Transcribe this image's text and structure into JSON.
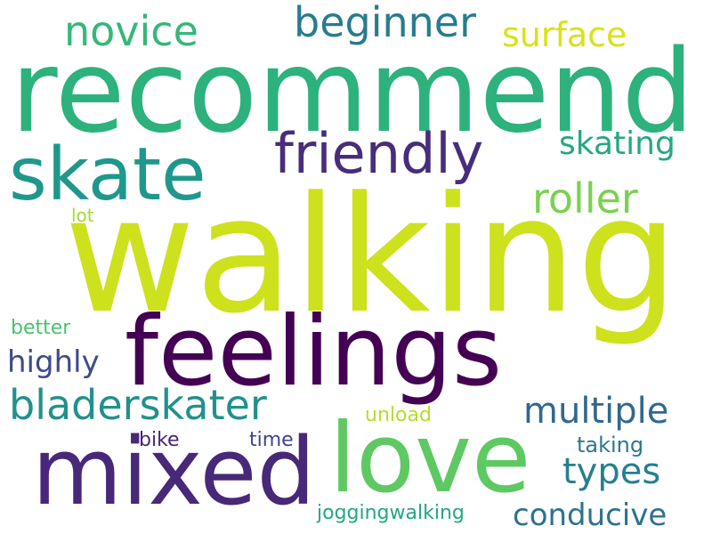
{
  "words": [
    {
      "text": "walking",
      "color": "#cde11d"
    },
    {
      "text": "recommend",
      "color": "#2db27d"
    },
    {
      "text": "feelings",
      "color": "#440154"
    },
    {
      "text": "mixed",
      "color": "#482878"
    },
    {
      "text": "love",
      "color": "#5ec962"
    },
    {
      "text": "skate",
      "color": "#1f988b"
    },
    {
      "text": "friendly",
      "color": "#472d7b"
    },
    {
      "text": "beginner",
      "color": "#287c8e"
    },
    {
      "text": "novice",
      "color": "#35b779"
    },
    {
      "text": "surface",
      "color": "#d8e219"
    },
    {
      "text": "roller",
      "color": "#7ad151"
    },
    {
      "text": "skating",
      "color": "#23a884"
    },
    {
      "text": "bladerskater",
      "color": "#21918c"
    },
    {
      "text": "multiple",
      "color": "#31688e"
    },
    {
      "text": "highly",
      "color": "#3e4a89"
    },
    {
      "text": "types",
      "color": "#277f8e"
    },
    {
      "text": "conducive",
      "color": "#2c728e"
    },
    {
      "text": "joggingwalking",
      "color": "#22a785"
    },
    {
      "text": "taking",
      "color": "#2a788e"
    },
    {
      "text": "unload",
      "color": "#b5de2b"
    },
    {
      "text": "bike",
      "color": "#482475"
    },
    {
      "text": "time",
      "color": "#414487"
    },
    {
      "text": "better",
      "color": "#4ac16d"
    },
    {
      "text": "lot",
      "color": "#a5db36"
    }
  ]
}
